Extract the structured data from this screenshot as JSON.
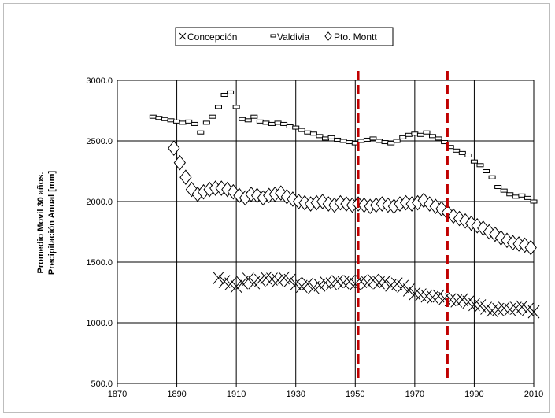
{
  "chart_data": {
    "type": "scatter",
    "ylabel_lines": [
      "Promedio Movil 30 años.",
      "Precipitación Anual [mm]"
    ],
    "xlim": [
      1870,
      2010
    ],
    "ylim": [
      500,
      3000
    ],
    "x_ticks": [
      "1870",
      "1890",
      "1910",
      "1930",
      "1950",
      "1970",
      "1990",
      "2010"
    ],
    "y_ticks": [
      "500.0",
      "1000.0",
      "1500.0",
      "2000.0",
      "2500.0",
      "3000.0"
    ],
    "vertical_grid": true,
    "horizontal_grid": true,
    "legend_position": "top-center",
    "reference_lines": [
      {
        "x": 1951,
        "color": "#c00000"
      },
      {
        "x": 1981,
        "color": "#c00000"
      }
    ],
    "series": [
      {
        "name": "Concepción",
        "marker": "x",
        "points": [
          [
            1904,
            1370
          ],
          [
            1906,
            1340
          ],
          [
            1908,
            1320
          ],
          [
            1910,
            1300
          ],
          [
            1912,
            1330
          ],
          [
            1914,
            1360
          ],
          [
            1916,
            1330
          ],
          [
            1918,
            1350
          ],
          [
            1920,
            1370
          ],
          [
            1922,
            1360
          ],
          [
            1924,
            1350
          ],
          [
            1926,
            1370
          ],
          [
            1928,
            1350
          ],
          [
            1930,
            1320
          ],
          [
            1932,
            1300
          ],
          [
            1934,
            1320
          ],
          [
            1936,
            1290
          ],
          [
            1938,
            1310
          ],
          [
            1940,
            1330
          ],
          [
            1942,
            1320
          ],
          [
            1944,
            1340
          ],
          [
            1946,
            1330
          ],
          [
            1948,
            1340
          ],
          [
            1950,
            1320
          ],
          [
            1952,
            1340
          ],
          [
            1954,
            1330
          ],
          [
            1956,
            1350
          ],
          [
            1958,
            1330
          ],
          [
            1960,
            1340
          ],
          [
            1962,
            1310
          ],
          [
            1964,
            1320
          ],
          [
            1966,
            1300
          ],
          [
            1968,
            1270
          ],
          [
            1970,
            1240
          ],
          [
            1972,
            1230
          ],
          [
            1974,
            1220
          ],
          [
            1976,
            1210
          ],
          [
            1978,
            1220
          ],
          [
            1980,
            1200
          ],
          [
            1982,
            1190
          ],
          [
            1984,
            1180
          ],
          [
            1986,
            1190
          ],
          [
            1988,
            1170
          ],
          [
            1990,
            1150
          ],
          [
            1992,
            1140
          ],
          [
            1994,
            1120
          ],
          [
            1996,
            1100
          ],
          [
            1998,
            1110
          ],
          [
            2000,
            1120
          ],
          [
            2002,
            1110
          ],
          [
            2004,
            1120
          ],
          [
            2006,
            1130
          ],
          [
            2008,
            1110
          ],
          [
            2010,
            1090
          ]
        ]
      },
      {
        "name": "Valdivia",
        "marker": "rect",
        "points": [
          [
            1882,
            2700
          ],
          [
            1884,
            2690
          ],
          [
            1886,
            2680
          ],
          [
            1888,
            2670
          ],
          [
            1890,
            2660
          ],
          [
            1892,
            2650
          ],
          [
            1894,
            2660
          ],
          [
            1896,
            2640
          ],
          [
            1898,
            2570
          ],
          [
            1900,
            2650
          ],
          [
            1902,
            2700
          ],
          [
            1904,
            2780
          ],
          [
            1906,
            2880
          ],
          [
            1908,
            2900
          ],
          [
            1910,
            2780
          ],
          [
            1912,
            2680
          ],
          [
            1914,
            2670
          ],
          [
            1916,
            2700
          ],
          [
            1918,
            2660
          ],
          [
            1920,
            2650
          ],
          [
            1922,
            2640
          ],
          [
            1924,
            2650
          ],
          [
            1926,
            2640
          ],
          [
            1928,
            2620
          ],
          [
            1930,
            2610
          ],
          [
            1932,
            2590
          ],
          [
            1934,
            2570
          ],
          [
            1936,
            2560
          ],
          [
            1938,
            2540
          ],
          [
            1940,
            2520
          ],
          [
            1942,
            2530
          ],
          [
            1944,
            2510
          ],
          [
            1946,
            2500
          ],
          [
            1948,
            2490
          ],
          [
            1950,
            2480
          ],
          [
            1952,
            2500
          ],
          [
            1954,
            2510
          ],
          [
            1956,
            2520
          ],
          [
            1958,
            2500
          ],
          [
            1960,
            2490
          ],
          [
            1962,
            2480
          ],
          [
            1964,
            2500
          ],
          [
            1966,
            2530
          ],
          [
            1968,
            2550
          ],
          [
            1970,
            2560
          ],
          [
            1972,
            2550
          ],
          [
            1974,
            2570
          ],
          [
            1976,
            2540
          ],
          [
            1978,
            2520
          ],
          [
            1980,
            2490
          ],
          [
            1982,
            2450
          ],
          [
            1984,
            2420
          ],
          [
            1986,
            2400
          ],
          [
            1988,
            2380
          ],
          [
            1990,
            2330
          ],
          [
            1992,
            2300
          ],
          [
            1994,
            2250
          ],
          [
            1996,
            2200
          ],
          [
            1998,
            2120
          ],
          [
            2000,
            2090
          ],
          [
            2002,
            2060
          ],
          [
            2004,
            2040
          ],
          [
            2006,
            2050
          ],
          [
            2008,
            2030
          ],
          [
            2010,
            2000
          ]
        ]
      },
      {
        "name": "Pto. Montt",
        "marker": "diamond",
        "points": [
          [
            1889,
            2440
          ],
          [
            1891,
            2320
          ],
          [
            1893,
            2200
          ],
          [
            1895,
            2100
          ],
          [
            1897,
            2060
          ],
          [
            1899,
            2080
          ],
          [
            1901,
            2100
          ],
          [
            1903,
            2110
          ],
          [
            1905,
            2110
          ],
          [
            1907,
            2100
          ],
          [
            1909,
            2080
          ],
          [
            1911,
            2050
          ],
          [
            1913,
            2030
          ],
          [
            1915,
            2060
          ],
          [
            1917,
            2050
          ],
          [
            1919,
            2030
          ],
          [
            1921,
            2050
          ],
          [
            1923,
            2060
          ],
          [
            1925,
            2070
          ],
          [
            1927,
            2040
          ],
          [
            1929,
            2020
          ],
          [
            1931,
            2000
          ],
          [
            1933,
            1990
          ],
          [
            1935,
            1980
          ],
          [
            1937,
            1990
          ],
          [
            1939,
            2000
          ],
          [
            1941,
            1980
          ],
          [
            1943,
            1970
          ],
          [
            1945,
            1990
          ],
          [
            1947,
            1980
          ],
          [
            1949,
            1970
          ],
          [
            1951,
            1980
          ],
          [
            1953,
            1970
          ],
          [
            1955,
            1960
          ],
          [
            1957,
            1970
          ],
          [
            1959,
            1980
          ],
          [
            1961,
            1970
          ],
          [
            1963,
            1960
          ],
          [
            1965,
            1980
          ],
          [
            1967,
            1990
          ],
          [
            1969,
            1980
          ],
          [
            1971,
            1990
          ],
          [
            1973,
            2010
          ],
          [
            1975,
            1980
          ],
          [
            1977,
            1960
          ],
          [
            1979,
            1940
          ],
          [
            1981,
            1910
          ],
          [
            1983,
            1880
          ],
          [
            1985,
            1860
          ],
          [
            1987,
            1840
          ],
          [
            1989,
            1820
          ],
          [
            1991,
            1800
          ],
          [
            1993,
            1780
          ],
          [
            1995,
            1750
          ],
          [
            1997,
            1730
          ],
          [
            1999,
            1700
          ],
          [
            2001,
            1680
          ],
          [
            2003,
            1660
          ],
          [
            2005,
            1650
          ],
          [
            2007,
            1640
          ],
          [
            2009,
            1620
          ]
        ]
      }
    ]
  }
}
